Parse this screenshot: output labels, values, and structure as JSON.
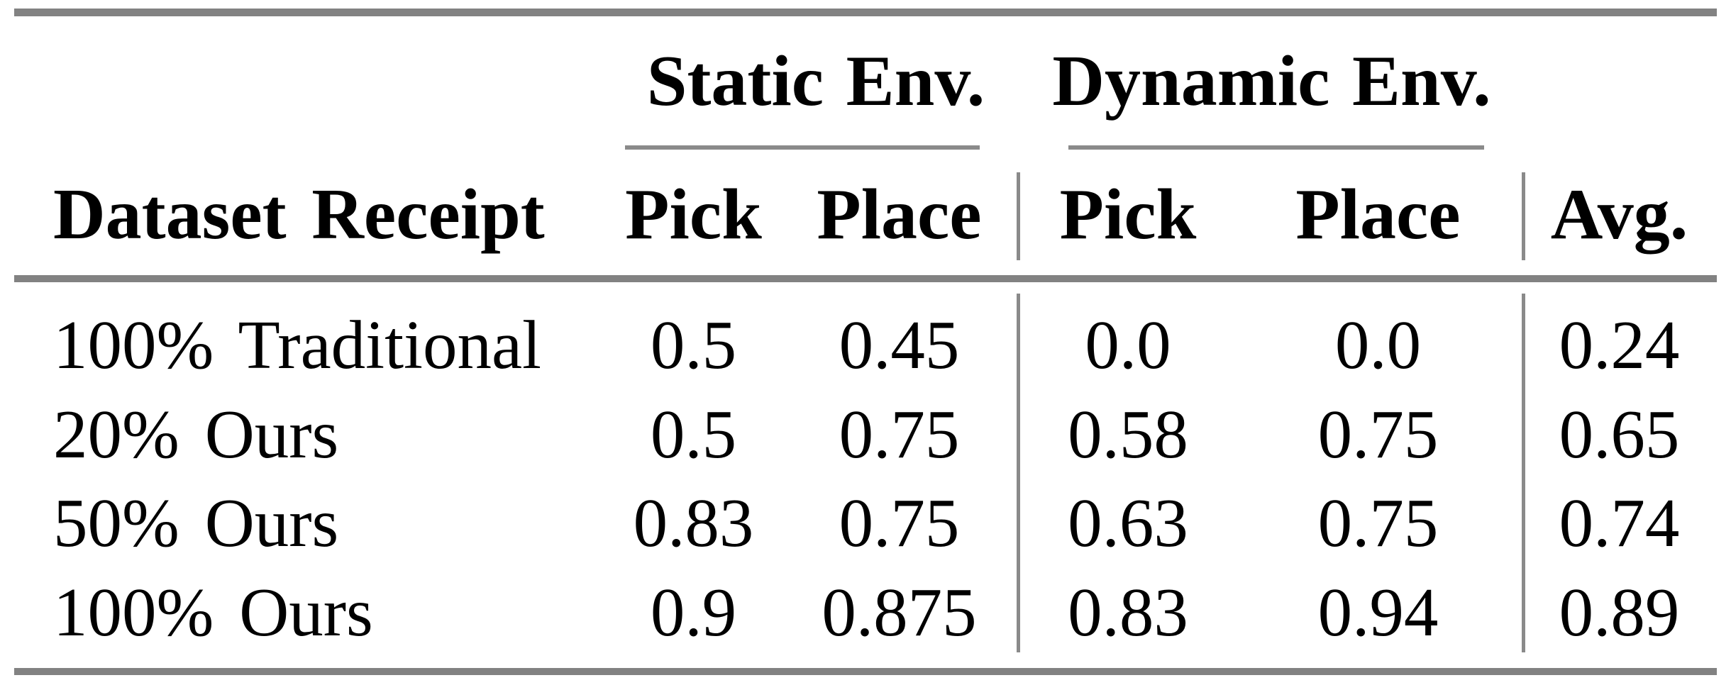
{
  "table": {
    "row_header": "Dataset Receipt",
    "groups": [
      {
        "label": "Static Env.",
        "columns": [
          "Pick",
          "Place"
        ]
      },
      {
        "label": "Dynamic Env.",
        "columns": [
          "Pick",
          "Place"
        ]
      }
    ],
    "avg_header": "Avg.",
    "rows": [
      {
        "label": "100% Traditional",
        "values": [
          "0.5",
          "0.45",
          "0.0",
          "0.0",
          "0.24"
        ]
      },
      {
        "label": "20% Ours",
        "values": [
          "0.5",
          "0.75",
          "0.58",
          "0.75",
          "0.65"
        ]
      },
      {
        "label": "50% Ours",
        "values": [
          "0.83",
          "0.75",
          "0.63",
          "0.75",
          "0.74"
        ]
      },
      {
        "label": "100% Ours",
        "values": [
          "0.9",
          "0.875",
          "0.83",
          "0.94",
          "0.89"
        ]
      }
    ]
  },
  "chart_data": {
    "type": "table",
    "columns": [
      "Dataset Receipt",
      "Static Env. Pick",
      "Static Env. Place",
      "Dynamic Env. Pick",
      "Dynamic Env. Place",
      "Avg."
    ],
    "rows": [
      [
        "100% Traditional",
        0.5,
        0.45,
        0.0,
        0.0,
        0.24
      ],
      [
        "20% Ours",
        0.5,
        0.75,
        0.58,
        0.75,
        0.65
      ],
      [
        "50% Ours",
        0.83,
        0.75,
        0.63,
        0.75,
        0.74
      ],
      [
        "100% Ours",
        0.9,
        0.875,
        0.83,
        0.94,
        0.89
      ]
    ]
  },
  "colors": {
    "text": "#000000",
    "rule_thick": "#828282",
    "rule_thin": "#8a8a8a",
    "background": "#ffffff"
  }
}
